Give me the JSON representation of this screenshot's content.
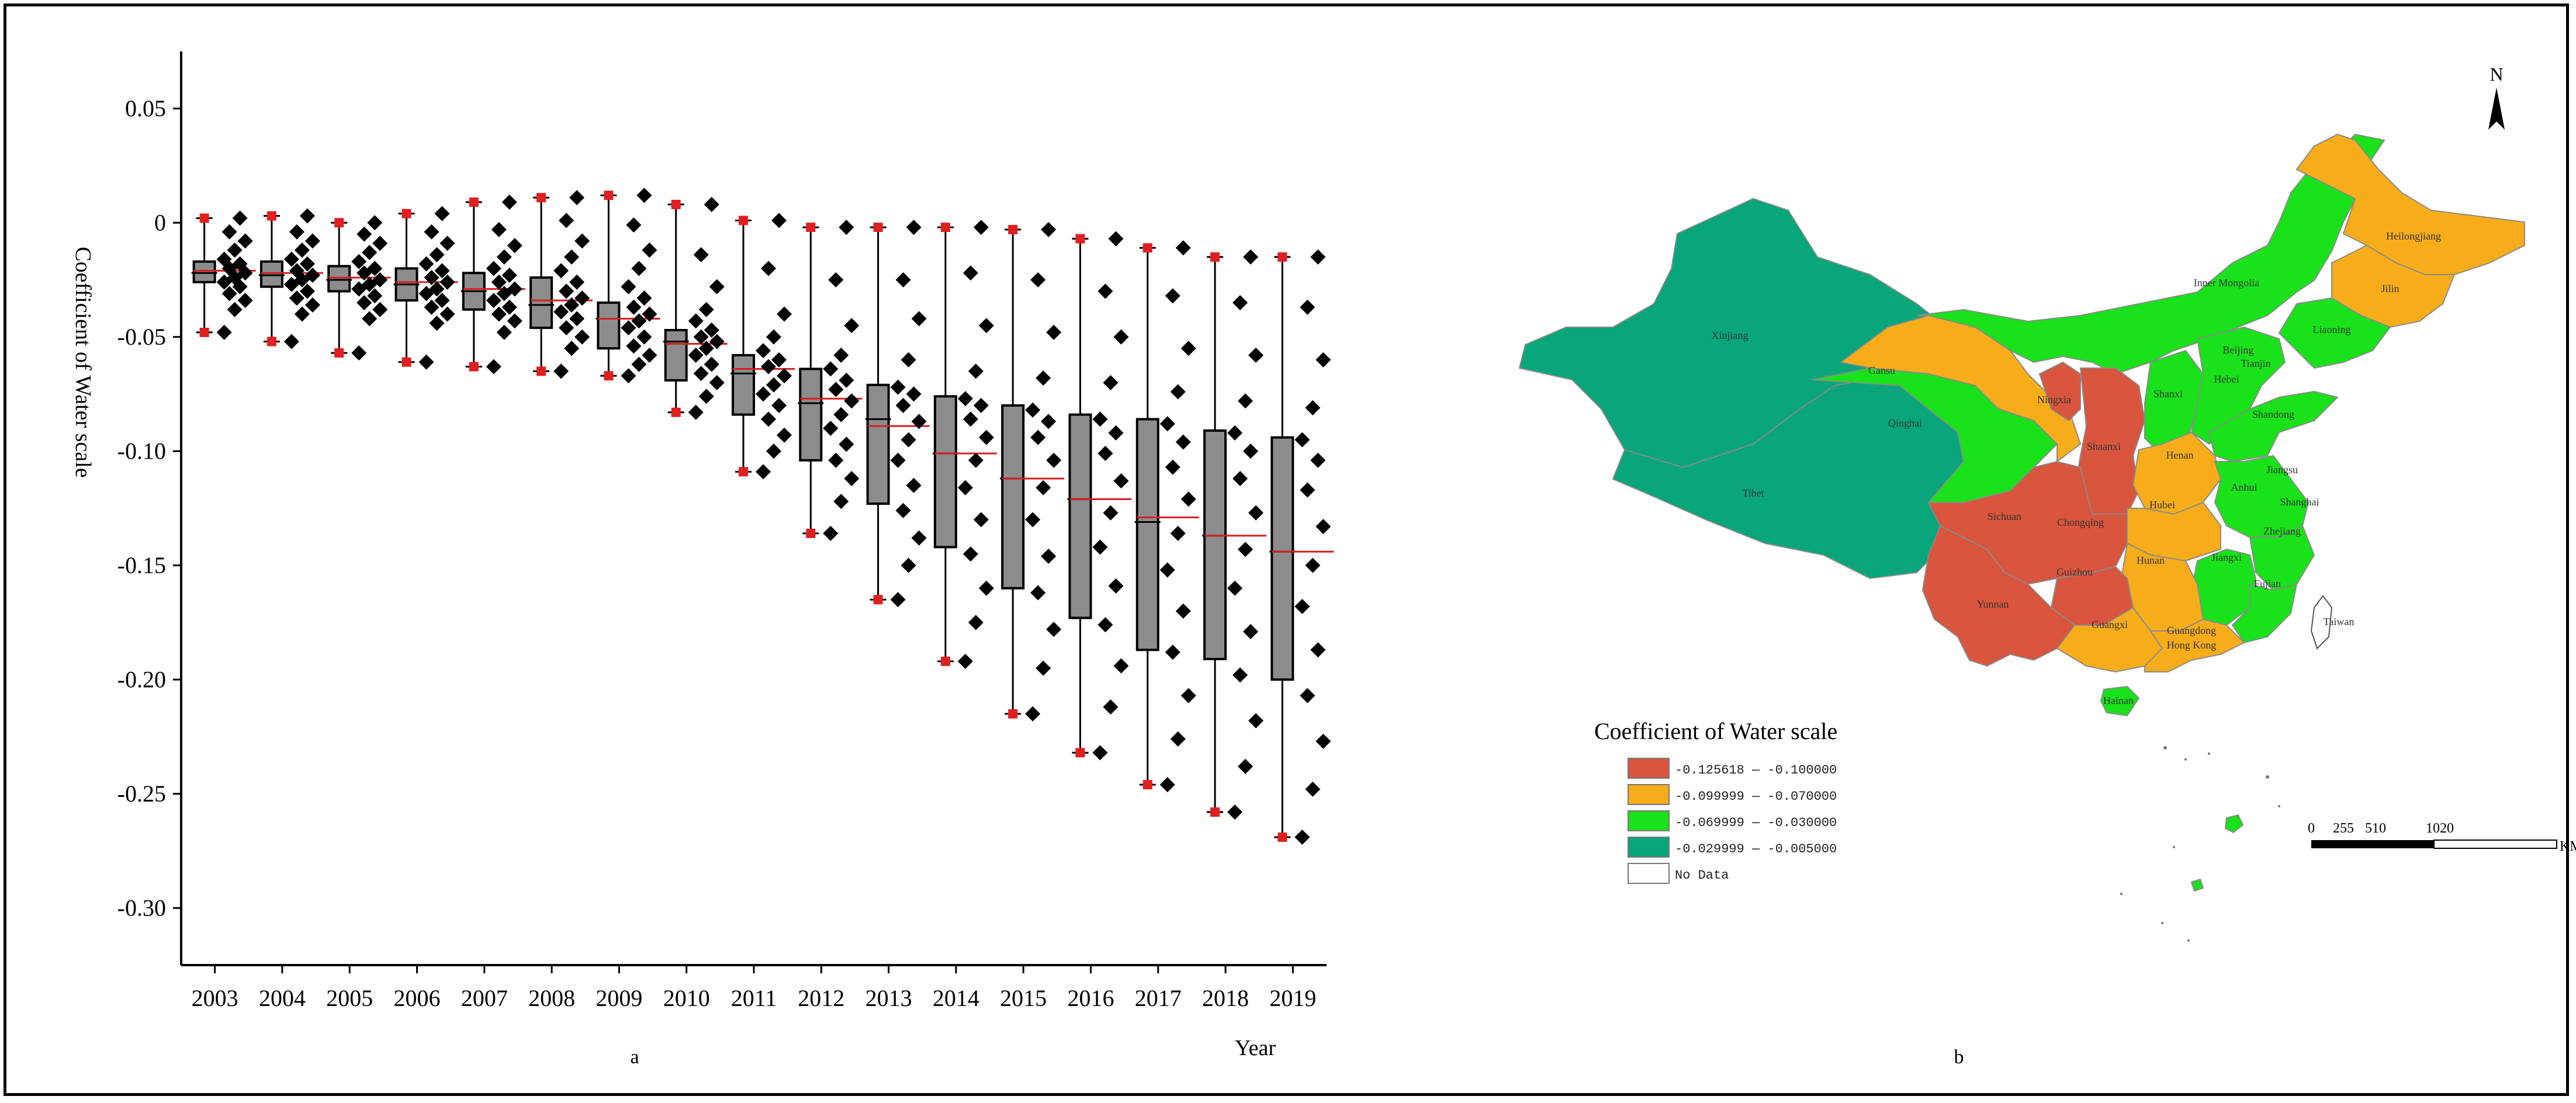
{
  "panel_a": {
    "caption": "a",
    "chart_data": {
      "type": "box",
      "ylabel": "Coefficient of Water scale",
      "xlabel": "Year",
      "ylim": [
        -0.325,
        0.075
      ],
      "y_ticks": [
        0.05,
        0,
        -0.05,
        -0.1,
        -0.15,
        -0.2,
        -0.25,
        -0.3
      ],
      "y_tick_labels": [
        "0.05",
        "0",
        "-0.05",
        "-0.10",
        "-0.15",
        "-0.20",
        "-0.25",
        "-0.30"
      ],
      "categories": [
        "2003",
        "2004",
        "2005",
        "2006",
        "2007",
        "2008",
        "2009",
        "2010",
        "2011",
        "2012",
        "2013",
        "2014",
        "2015",
        "2016",
        "2017",
        "2018",
        "2019"
      ],
      "boxes": [
        {
          "min": -0.048,
          "q1": -0.026,
          "median": -0.022,
          "q3": -0.017,
          "max": 0.002,
          "mean": -0.021
        },
        {
          "min": -0.052,
          "q1": -0.028,
          "median": -0.023,
          "q3": -0.017,
          "max": 0.003,
          "mean": -0.022
        },
        {
          "min": -0.057,
          "q1": -0.03,
          "median": -0.025,
          "q3": -0.019,
          "max": 0.0,
          "mean": -0.024
        },
        {
          "min": -0.061,
          "q1": -0.034,
          "median": -0.027,
          "q3": -0.02,
          "max": 0.004,
          "mean": -0.026
        },
        {
          "min": -0.063,
          "q1": -0.038,
          "median": -0.03,
          "q3": -0.022,
          "max": 0.009,
          "mean": -0.029
        },
        {
          "min": -0.065,
          "q1": -0.046,
          "median": -0.036,
          "q3": -0.024,
          "max": 0.011,
          "mean": -0.034
        },
        {
          "min": -0.067,
          "q1": -0.055,
          "median": -0.042,
          "q3": -0.035,
          "max": 0.012,
          "mean": -0.042
        },
        {
          "min": -0.083,
          "q1": -0.069,
          "median": -0.052,
          "q3": -0.047,
          "max": 0.008,
          "mean": -0.053
        },
        {
          "min": -0.109,
          "q1": -0.084,
          "median": -0.066,
          "q3": -0.058,
          "max": 0.001,
          "mean": -0.064
        },
        {
          "min": -0.136,
          "q1": -0.104,
          "median": -0.079,
          "q3": -0.064,
          "max": -0.002,
          "mean": -0.077
        },
        {
          "min": -0.165,
          "q1": -0.123,
          "median": -0.086,
          "q3": -0.071,
          "max": -0.002,
          "mean": -0.089
        },
        {
          "min": -0.192,
          "q1": -0.142,
          "median": -0.101,
          "q3": -0.076,
          "max": -0.002,
          "mean": -0.101
        },
        {
          "min": -0.215,
          "q1": -0.16,
          "median": -0.112,
          "q3": -0.08,
          "max": -0.003,
          "mean": -0.112
        },
        {
          "min": -0.232,
          "q1": -0.173,
          "median": -0.121,
          "q3": -0.084,
          "max": -0.007,
          "mean": -0.121
        },
        {
          "min": -0.246,
          "q1": -0.187,
          "median": -0.131,
          "q3": -0.086,
          "max": -0.011,
          "mean": -0.129
        },
        {
          "min": -0.258,
          "q1": -0.191,
          "median": -0.137,
          "q3": -0.091,
          "max": -0.015,
          "mean": -0.137
        },
        {
          "min": -0.269,
          "q1": -0.2,
          "median": -0.144,
          "q3": -0.094,
          "max": -0.015,
          "mean": -0.144
        }
      ],
      "scatter": [
        [
          -0.048,
          -0.038,
          -0.034,
          -0.031,
          -0.028,
          -0.026,
          -0.024,
          -0.022,
          -0.02,
          -0.018,
          -0.016,
          -0.012,
          -0.008,
          -0.004,
          0.002
        ],
        [
          -0.052,
          -0.04,
          -0.036,
          -0.033,
          -0.03,
          -0.027,
          -0.025,
          -0.023,
          -0.021,
          -0.018,
          -0.016,
          -0.012,
          -0.008,
          -0.004,
          0.003
        ],
        [
          -0.057,
          -0.042,
          -0.038,
          -0.035,
          -0.032,
          -0.029,
          -0.027,
          -0.025,
          -0.022,
          -0.02,
          -0.017,
          -0.013,
          -0.009,
          -0.005,
          0.0
        ],
        [
          -0.061,
          -0.044,
          -0.04,
          -0.037,
          -0.034,
          -0.031,
          -0.029,
          -0.026,
          -0.024,
          -0.021,
          -0.018,
          -0.014,
          -0.009,
          -0.004,
          0.004
        ],
        [
          -0.063,
          -0.048,
          -0.043,
          -0.04,
          -0.037,
          -0.034,
          -0.031,
          -0.029,
          -0.026,
          -0.023,
          -0.02,
          -0.015,
          -0.01,
          -0.003,
          0.009
        ],
        [
          -0.065,
          -0.055,
          -0.05,
          -0.046,
          -0.042,
          -0.039,
          -0.036,
          -0.033,
          -0.03,
          -0.026,
          -0.021,
          -0.015,
          -0.008,
          0.001,
          0.011
        ],
        [
          -0.067,
          -0.062,
          -0.058,
          -0.054,
          -0.05,
          -0.046,
          -0.043,
          -0.04,
          -0.037,
          -0.033,
          -0.028,
          -0.02,
          -0.012,
          -0.001,
          0.012
        ],
        [
          -0.083,
          -0.076,
          -0.07,
          -0.066,
          -0.062,
          -0.058,
          -0.055,
          -0.052,
          -0.05,
          -0.047,
          -0.043,
          -0.038,
          -0.028,
          -0.014,
          0.008
        ],
        [
          -0.109,
          -0.1,
          -0.093,
          -0.086,
          -0.08,
          -0.075,
          -0.071,
          -0.067,
          -0.063,
          -0.06,
          -0.056,
          -0.05,
          -0.04,
          -0.02,
          0.001
        ],
        [
          -0.136,
          -0.122,
          -0.112,
          -0.104,
          -0.097,
          -0.09,
          -0.084,
          -0.078,
          -0.073,
          -0.069,
          -0.064,
          -0.058,
          -0.045,
          -0.025,
          -0.002
        ],
        [
          -0.165,
          -0.15,
          -0.138,
          -0.126,
          -0.115,
          -0.104,
          -0.095,
          -0.087,
          -0.08,
          -0.075,
          -0.072,
          -0.06,
          -0.042,
          -0.025,
          -0.002
        ],
        [
          -0.192,
          -0.175,
          -0.16,
          -0.145,
          -0.13,
          -0.116,
          -0.104,
          -0.094,
          -0.086,
          -0.08,
          -0.077,
          -0.065,
          -0.045,
          -0.022,
          -0.002
        ],
        [
          -0.215,
          -0.195,
          -0.178,
          -0.162,
          -0.146,
          -0.13,
          -0.116,
          -0.104,
          -0.094,
          -0.087,
          -0.082,
          -0.068,
          -0.048,
          -0.025,
          -0.003
        ],
        [
          -0.232,
          -0.212,
          -0.194,
          -0.176,
          -0.159,
          -0.142,
          -0.127,
          -0.113,
          -0.101,
          -0.092,
          -0.086,
          -0.07,
          -0.05,
          -0.03,
          -0.007
        ],
        [
          -0.246,
          -0.226,
          -0.207,
          -0.188,
          -0.17,
          -0.152,
          -0.136,
          -0.121,
          -0.107,
          -0.096,
          -0.088,
          -0.074,
          -0.055,
          -0.032,
          -0.011
        ],
        [
          -0.258,
          -0.238,
          -0.218,
          -0.198,
          -0.179,
          -0.16,
          -0.143,
          -0.127,
          -0.112,
          -0.1,
          -0.092,
          -0.078,
          -0.058,
          -0.035,
          -0.015
        ],
        [
          -0.269,
          -0.248,
          -0.227,
          -0.207,
          -0.187,
          -0.168,
          -0.15,
          -0.133,
          -0.117,
          -0.104,
          -0.095,
          -0.081,
          -0.06,
          -0.037,
          -0.015
        ]
      ],
      "colors": {
        "box_fill": "#8c8c8c",
        "median": "#d42020",
        "outlier": "#e02020",
        "point": "#000000"
      }
    }
  },
  "panel_b": {
    "caption": "b",
    "north_label": "N",
    "legend": {
      "title": "Coefficient of Water scale",
      "items": [
        {
          "label": "-0.125618 — -0.100000",
          "color": "#d9553d"
        },
        {
          "label": "-0.099999 — -0.070000",
          "color": "#f7ad1a"
        },
        {
          "label": "-0.069999 — -0.030000",
          "color": "#19e21a"
        },
        {
          "label": "-0.029999 — -0.005000",
          "color": "#08a67a"
        },
        {
          "label": "No Data",
          "color": "#ffffff"
        }
      ]
    },
    "scale_bar": {
      "ticks": [
        "0",
        "255",
        "510",
        "1020"
      ],
      "unit": "KM"
    },
    "provinces": [
      "Xinjiang",
      "Tibet",
      "Qinghai",
      "Gansu",
      "Ningxia",
      "Shaanxi",
      "Sichuan",
      "Chongqing",
      "Guizhou",
      "Yunnan",
      "Guangxi",
      "Guangdong",
      "Hong Kong",
      "Hainan",
      "Hunan",
      "Hubei",
      "Henan",
      "Shanxi",
      "Inner Mongolia",
      "Heilongjiang",
      "Jilin",
      "Liaoning",
      "Beijing",
      "Tianjin",
      "Hebei",
      "Shandong",
      "Jiangsu",
      "Anhui",
      "Shanghai",
      "Zhejiang",
      "Jiangxi",
      "Fujian",
      "Taiwan"
    ]
  }
}
